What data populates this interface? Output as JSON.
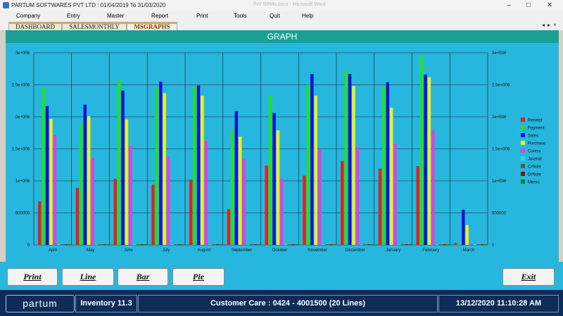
{
  "window": {
    "title": "PARTUM SOFTWARES PVT LTD  :  01/04/2019 To 31/03/2020",
    "faint_caption": "INV SRMs.docx - Microsoft Word"
  },
  "menu": [
    "Company",
    "Entry",
    "Master",
    "Report",
    "Print",
    "Tools",
    "Quit",
    "Help"
  ],
  "tabs": [
    {
      "label": "DASHBOARD",
      "active": false
    },
    {
      "label": "SALESMONTHLY",
      "active": false
    },
    {
      "label": "MSGRAPHS",
      "active": true
    }
  ],
  "graph_title": "GRAPH",
  "buttons": {
    "print": "Print",
    "line": "Line",
    "bar": "Bar",
    "pie": "Pie",
    "exit": "Exit"
  },
  "status": {
    "logo": "partum",
    "product": "Inventory 11.3",
    "care": "Customer Care : 0424 - 4001500  (20 Lines)",
    "datetime": "13/12/2020 11:10:28 AM"
  },
  "chart_data": {
    "type": "bar",
    "categories": [
      "April",
      "May",
      "June",
      "July",
      "August",
      "September",
      "October",
      "November",
      "December",
      "January",
      "February",
      "March"
    ],
    "ylim": [
      0,
      3000000
    ],
    "yticks": [
      0,
      500000,
      1000000,
      1500000,
      2000000,
      2500000,
      3000000
    ],
    "ytick_labels": [
      "0",
      "500000",
      "1e+006",
      "1.5e+006",
      "2e+006",
      "2.5e+006",
      "3e+006"
    ],
    "legend_position": "right",
    "grid": true,
    "series": [
      {
        "name": "Receipt",
        "color": "#e02020",
        "values": [
          680000,
          890000,
          1030000,
          940000,
          1020000,
          560000,
          1240000,
          1080000,
          1310000,
          1190000,
          1230000,
          30000
        ]
      },
      {
        "name": "Payment",
        "color": "#22e022",
        "values": [
          2450000,
          1900000,
          2580000,
          2470000,
          2480000,
          1800000,
          2330000,
          2500000,
          2720000,
          2480000,
          2960000,
          0
        ]
      },
      {
        "name": "Sales",
        "color": "#1010d8",
        "values": [
          2170000,
          2190000,
          2410000,
          2550000,
          2490000,
          2090000,
          2060000,
          2670000,
          2670000,
          2540000,
          2660000,
          550000
        ]
      },
      {
        "name": "Purchase",
        "color": "#eeee22",
        "values": [
          1970000,
          2010000,
          1960000,
          2370000,
          2330000,
          1690000,
          1790000,
          2330000,
          2480000,
          2140000,
          2620000,
          310000
        ]
      },
      {
        "name": "Contra",
        "color": "#e040e0",
        "values": [
          1720000,
          1360000,
          1550000,
          1380000,
          1620000,
          1350000,
          1040000,
          1490000,
          1530000,
          1580000,
          1790000,
          0
        ]
      },
      {
        "name": "Journal",
        "color": "#20e0e0",
        "values": [
          0,
          0,
          0,
          0,
          0,
          0,
          0,
          0,
          0,
          0,
          0,
          0
        ]
      },
      {
        "name": "CrNote",
        "color": "#5a5a4a",
        "values": [
          0,
          0,
          0,
          0,
          0,
          0,
          0,
          0,
          0,
          0,
          0,
          0
        ]
      },
      {
        "name": "DrNote",
        "color": "#8a1010",
        "values": [
          0,
          0,
          0,
          0,
          0,
          0,
          0,
          0,
          0,
          0,
          0,
          0
        ]
      },
      {
        "name": "Memo",
        "color": "#1a7a1a",
        "values": [
          0,
          0,
          0,
          0,
          0,
          0,
          0,
          0,
          0,
          0,
          0,
          0
        ]
      }
    ]
  }
}
